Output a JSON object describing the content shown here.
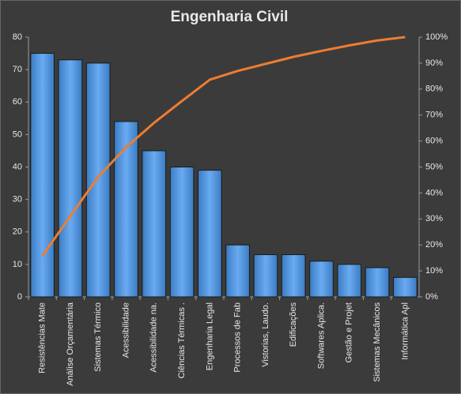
{
  "chart_data": {
    "type": "pareto",
    "title": "Engenharia  Civil",
    "categories": [
      "Resistências Mate",
      "Análise Orçamentária",
      "Sistemas Térmico",
      "Acessibilidade",
      "Acessibilidade na.",
      "Ciências Térmicas .",
      "Engenharia Legal",
      "Processos de Fab",
      "Vistorias, Laudo.",
      "Edificações",
      "Softwares Aplica.",
      "Gestão e Projet",
      "Sistemas Mecânicos",
      "Informática Apl"
    ],
    "series": [
      {
        "color": "#4a8fd8",
        "values": [
          75,
          73,
          72,
          54,
          45,
          40,
          39,
          16,
          13,
          13,
          11,
          10,
          9,
          6
        ]
      },
      {
        "color": "#ed7d31",
        "axis": "y2",
        "values": [
          15.8,
          31.1,
          46.2,
          57.6,
          67.0,
          75.4,
          83.6,
          87.0,
          89.7,
          92.4,
          94.7,
          96.8,
          98.7,
          100
        ]
      }
    ],
    "ylim": [
      0,
      80
    ],
    "yticks": [
      0,
      10,
      20,
      30,
      40,
      50,
      60,
      70,
      80
    ],
    "y2lim": [
      0,
      100
    ],
    "y2ticks": [
      {
        "value": 0,
        "label": "0%"
      },
      {
        "value": 10,
        "label": "10%"
      },
      {
        "value": 20,
        "label": "20%"
      },
      {
        "value": 30,
        "label": "30%"
      },
      {
        "value": 40,
        "label": "40%"
      },
      {
        "value": 50,
        "label": "50%"
      },
      {
        "value": 60,
        "label": "60%"
      },
      {
        "value": 70,
        "label": "70%"
      },
      {
        "value": 80,
        "label": "80%"
      },
      {
        "value": 90,
        "label": "90%"
      },
      {
        "value": 100,
        "label": "100%"
      }
    ]
  }
}
